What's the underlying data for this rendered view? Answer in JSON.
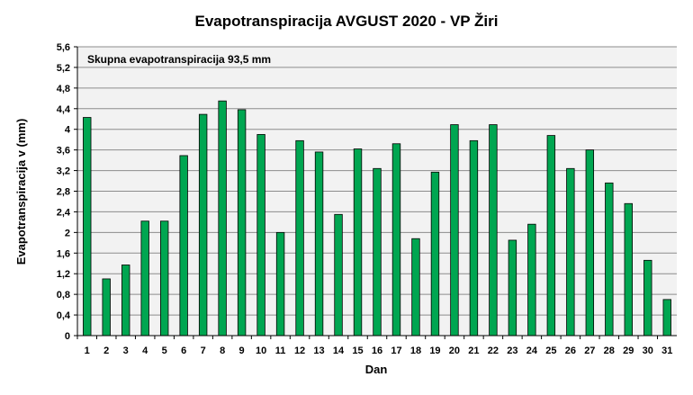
{
  "chart_data": {
    "type": "bar",
    "title": "Evapotranspiracija  AVGUST 2020 - VP Žiri",
    "xlabel": "Dan",
    "ylabel": "Evapotranspiracija v  (mm)",
    "annotation": "Skupna evapotranspiracija  93,5 mm",
    "categories": [
      "1",
      "2",
      "3",
      "4",
      "5",
      "6",
      "7",
      "8",
      "9",
      "10",
      "11",
      "12",
      "13",
      "14",
      "15",
      "16",
      "17",
      "18",
      "19",
      "20",
      "21",
      "22",
      "23",
      "24",
      "25",
      "26",
      "27",
      "28",
      "29",
      "30",
      "31"
    ],
    "series": [
      {
        "name": "Evapotranspiracija",
        "values": [
          4.23,
          1.1,
          1.37,
          2.22,
          2.22,
          3.49,
          4.29,
          4.55,
          4.38,
          3.9,
          2.0,
          3.78,
          3.56,
          2.35,
          3.62,
          3.24,
          3.72,
          1.88,
          3.17,
          4.09,
          3.78,
          4.09,
          1.85,
          2.16,
          3.88,
          3.24,
          3.6,
          2.96,
          2.56,
          1.46,
          0.7
        ]
      }
    ],
    "ylim": [
      0,
      5.6
    ],
    "yticks": [
      "0",
      "0,4",
      "0,8",
      "1,2",
      "1,6",
      "2",
      "2,4",
      "2,8",
      "3,2",
      "3,6",
      "4",
      "4,4",
      "4,8",
      "5,2",
      "5,6"
    ],
    "grid": true,
    "legend": "none"
  },
  "colors": {
    "bar_fill": "#00A651",
    "bar_stroke": "#000000",
    "plot_background": "#F2F2F2",
    "grid": "#8C8C8C"
  }
}
